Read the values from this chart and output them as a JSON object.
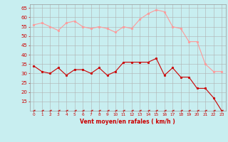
{
  "x": [
    0,
    1,
    2,
    3,
    4,
    5,
    6,
    7,
    8,
    9,
    10,
    11,
    12,
    13,
    14,
    15,
    16,
    17,
    18,
    19,
    20,
    21,
    22,
    23
  ],
  "avg_wind": [
    34,
    31,
    30,
    33,
    29,
    32,
    32,
    30,
    33,
    29,
    31,
    36,
    36,
    36,
    36,
    38,
    29,
    33,
    28,
    28,
    22,
    22,
    17,
    10
  ],
  "gust_wind": [
    56,
    57,
    55,
    53,
    57,
    58,
    55,
    54,
    55,
    54,
    52,
    55,
    54,
    59,
    62,
    64,
    63,
    55,
    54,
    47,
    47,
    35,
    31,
    31
  ],
  "min_line": [
    10,
    10,
    10,
    10,
    10,
    10,
    10,
    10,
    10,
    10,
    10,
    10,
    10,
    10,
    10,
    10,
    10,
    10,
    10,
    10,
    10,
    10,
    10,
    10
  ],
  "avg_color": "#cc0000",
  "gust_color": "#ff9999",
  "min_color": "#cc0000",
  "bg_color": "#c8eef0",
  "grid_color": "#b0b0b0",
  "xlabel": "Vent moyen/en rafales ( km/h )",
  "xlabel_color": "#cc0000",
  "tick_color": "#cc0000",
  "yticks": [
    15,
    20,
    25,
    30,
    35,
    40,
    45,
    50,
    55,
    60,
    65
  ],
  "xticks": [
    0,
    1,
    2,
    3,
    4,
    5,
    6,
    7,
    8,
    9,
    10,
    11,
    12,
    13,
    14,
    15,
    16,
    17,
    18,
    19,
    20,
    21,
    22,
    23
  ],
  "ylim": [
    10,
    67
  ],
  "xlim": [
    -0.5,
    23.5
  ]
}
